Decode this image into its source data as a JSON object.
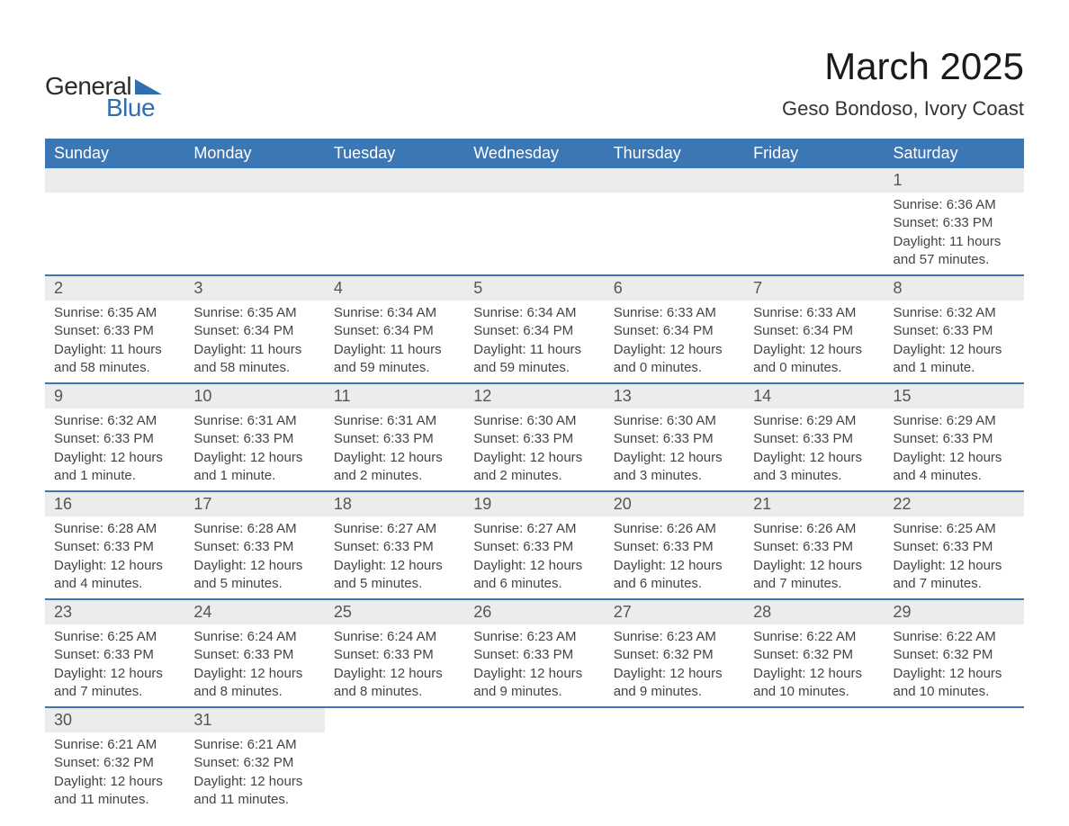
{
  "logo": {
    "word1": "General",
    "word2": "Blue",
    "triangle_color": "#2f6fae"
  },
  "title": "March 2025",
  "location": "Geso Bondoso, Ivory Coast",
  "colors": {
    "header_bg": "#3b77b5",
    "header_text": "#ffffff",
    "daynum_bg": "#ececec",
    "row_border": "#3b77b5",
    "body_text": "#444444",
    "page_bg": "#ffffff"
  },
  "typography": {
    "title_fontsize": 42,
    "location_fontsize": 22,
    "weekday_fontsize": 18,
    "daynum_fontsize": 18,
    "cell_fontsize": 15
  },
  "layout": {
    "columns": 7,
    "rows": 6,
    "col_width_pct": 14.2857
  },
  "weekdays": [
    "Sunday",
    "Monday",
    "Tuesday",
    "Wednesday",
    "Thursday",
    "Friday",
    "Saturday"
  ],
  "weeks": [
    [
      null,
      null,
      null,
      null,
      null,
      null,
      {
        "day": "1",
        "sunrise": "Sunrise: 6:36 AM",
        "sunset": "Sunset: 6:33 PM",
        "daylight": "Daylight: 11 hours and 57 minutes."
      }
    ],
    [
      {
        "day": "2",
        "sunrise": "Sunrise: 6:35 AM",
        "sunset": "Sunset: 6:33 PM",
        "daylight": "Daylight: 11 hours and 58 minutes."
      },
      {
        "day": "3",
        "sunrise": "Sunrise: 6:35 AM",
        "sunset": "Sunset: 6:34 PM",
        "daylight": "Daylight: 11 hours and 58 minutes."
      },
      {
        "day": "4",
        "sunrise": "Sunrise: 6:34 AM",
        "sunset": "Sunset: 6:34 PM",
        "daylight": "Daylight: 11 hours and 59 minutes."
      },
      {
        "day": "5",
        "sunrise": "Sunrise: 6:34 AM",
        "sunset": "Sunset: 6:34 PM",
        "daylight": "Daylight: 11 hours and 59 minutes."
      },
      {
        "day": "6",
        "sunrise": "Sunrise: 6:33 AM",
        "sunset": "Sunset: 6:34 PM",
        "daylight": "Daylight: 12 hours and 0 minutes."
      },
      {
        "day": "7",
        "sunrise": "Sunrise: 6:33 AM",
        "sunset": "Sunset: 6:34 PM",
        "daylight": "Daylight: 12 hours and 0 minutes."
      },
      {
        "day": "8",
        "sunrise": "Sunrise: 6:32 AM",
        "sunset": "Sunset: 6:33 PM",
        "daylight": "Daylight: 12 hours and 1 minute."
      }
    ],
    [
      {
        "day": "9",
        "sunrise": "Sunrise: 6:32 AM",
        "sunset": "Sunset: 6:33 PM",
        "daylight": "Daylight: 12 hours and 1 minute."
      },
      {
        "day": "10",
        "sunrise": "Sunrise: 6:31 AM",
        "sunset": "Sunset: 6:33 PM",
        "daylight": "Daylight: 12 hours and 1 minute."
      },
      {
        "day": "11",
        "sunrise": "Sunrise: 6:31 AM",
        "sunset": "Sunset: 6:33 PM",
        "daylight": "Daylight: 12 hours and 2 minutes."
      },
      {
        "day": "12",
        "sunrise": "Sunrise: 6:30 AM",
        "sunset": "Sunset: 6:33 PM",
        "daylight": "Daylight: 12 hours and 2 minutes."
      },
      {
        "day": "13",
        "sunrise": "Sunrise: 6:30 AM",
        "sunset": "Sunset: 6:33 PM",
        "daylight": "Daylight: 12 hours and 3 minutes."
      },
      {
        "day": "14",
        "sunrise": "Sunrise: 6:29 AM",
        "sunset": "Sunset: 6:33 PM",
        "daylight": "Daylight: 12 hours and 3 minutes."
      },
      {
        "day": "15",
        "sunrise": "Sunrise: 6:29 AM",
        "sunset": "Sunset: 6:33 PM",
        "daylight": "Daylight: 12 hours and 4 minutes."
      }
    ],
    [
      {
        "day": "16",
        "sunrise": "Sunrise: 6:28 AM",
        "sunset": "Sunset: 6:33 PM",
        "daylight": "Daylight: 12 hours and 4 minutes."
      },
      {
        "day": "17",
        "sunrise": "Sunrise: 6:28 AM",
        "sunset": "Sunset: 6:33 PM",
        "daylight": "Daylight: 12 hours and 5 minutes."
      },
      {
        "day": "18",
        "sunrise": "Sunrise: 6:27 AM",
        "sunset": "Sunset: 6:33 PM",
        "daylight": "Daylight: 12 hours and 5 minutes."
      },
      {
        "day": "19",
        "sunrise": "Sunrise: 6:27 AM",
        "sunset": "Sunset: 6:33 PM",
        "daylight": "Daylight: 12 hours and 6 minutes."
      },
      {
        "day": "20",
        "sunrise": "Sunrise: 6:26 AM",
        "sunset": "Sunset: 6:33 PM",
        "daylight": "Daylight: 12 hours and 6 minutes."
      },
      {
        "day": "21",
        "sunrise": "Sunrise: 6:26 AM",
        "sunset": "Sunset: 6:33 PM",
        "daylight": "Daylight: 12 hours and 7 minutes."
      },
      {
        "day": "22",
        "sunrise": "Sunrise: 6:25 AM",
        "sunset": "Sunset: 6:33 PM",
        "daylight": "Daylight: 12 hours and 7 minutes."
      }
    ],
    [
      {
        "day": "23",
        "sunrise": "Sunrise: 6:25 AM",
        "sunset": "Sunset: 6:33 PM",
        "daylight": "Daylight: 12 hours and 7 minutes."
      },
      {
        "day": "24",
        "sunrise": "Sunrise: 6:24 AM",
        "sunset": "Sunset: 6:33 PM",
        "daylight": "Daylight: 12 hours and 8 minutes."
      },
      {
        "day": "25",
        "sunrise": "Sunrise: 6:24 AM",
        "sunset": "Sunset: 6:33 PM",
        "daylight": "Daylight: 12 hours and 8 minutes."
      },
      {
        "day": "26",
        "sunrise": "Sunrise: 6:23 AM",
        "sunset": "Sunset: 6:33 PM",
        "daylight": "Daylight: 12 hours and 9 minutes."
      },
      {
        "day": "27",
        "sunrise": "Sunrise: 6:23 AM",
        "sunset": "Sunset: 6:32 PM",
        "daylight": "Daylight: 12 hours and 9 minutes."
      },
      {
        "day": "28",
        "sunrise": "Sunrise: 6:22 AM",
        "sunset": "Sunset: 6:32 PM",
        "daylight": "Daylight: 12 hours and 10 minutes."
      },
      {
        "day": "29",
        "sunrise": "Sunrise: 6:22 AM",
        "sunset": "Sunset: 6:32 PM",
        "daylight": "Daylight: 12 hours and 10 minutes."
      }
    ],
    [
      {
        "day": "30",
        "sunrise": "Sunrise: 6:21 AM",
        "sunset": "Sunset: 6:32 PM",
        "daylight": "Daylight: 12 hours and 11 minutes."
      },
      {
        "day": "31",
        "sunrise": "Sunrise: 6:21 AM",
        "sunset": "Sunset: 6:32 PM",
        "daylight": "Daylight: 12 hours and 11 minutes."
      },
      null,
      null,
      null,
      null,
      null
    ]
  ]
}
